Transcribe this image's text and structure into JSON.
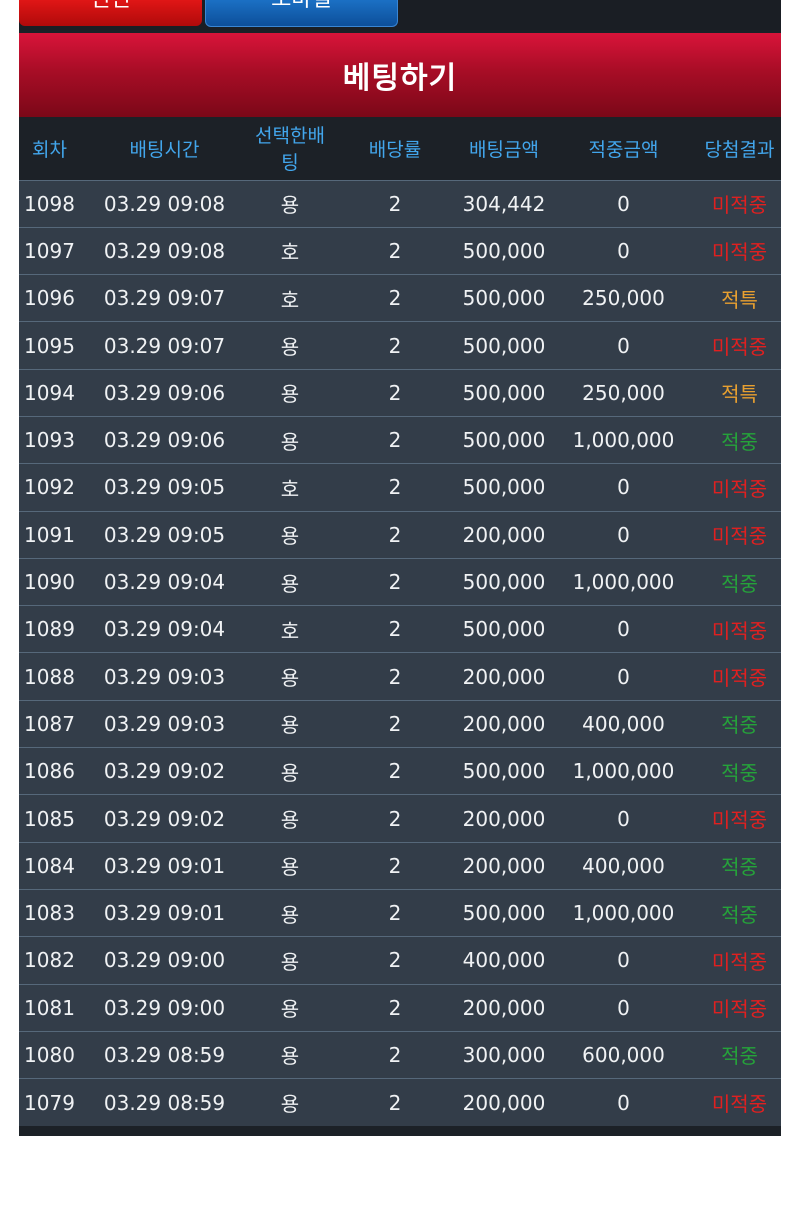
{
  "tabs": {
    "left_label": "친친",
    "right_label": "모바일"
  },
  "header": {
    "title": "베팅하기"
  },
  "table": {
    "columns": [
      "회차",
      "배팅시간",
      "선택한배팅",
      "배당률",
      "배팅금액",
      "적중금액",
      "당첨결과"
    ],
    "rows": [
      {
        "round": "1098",
        "time": "03.29 09:08",
        "pick": "용",
        "odds": "2",
        "bet": "304,442",
        "win_amount": "0",
        "result": "미적중",
        "result_type": "loss"
      },
      {
        "round": "1097",
        "time": "03.29 09:08",
        "pick": "호",
        "odds": "2",
        "bet": "500,000",
        "win_amount": "0",
        "result": "미적중",
        "result_type": "loss"
      },
      {
        "round": "1096",
        "time": "03.29 09:07",
        "pick": "호",
        "odds": "2",
        "bet": "500,000",
        "win_amount": "250,000",
        "result": "적특",
        "result_type": "partial"
      },
      {
        "round": "1095",
        "time": "03.29 09:07",
        "pick": "용",
        "odds": "2",
        "bet": "500,000",
        "win_amount": "0",
        "result": "미적중",
        "result_type": "loss"
      },
      {
        "round": "1094",
        "time": "03.29 09:06",
        "pick": "용",
        "odds": "2",
        "bet": "500,000",
        "win_amount": "250,000",
        "result": "적특",
        "result_type": "partial"
      },
      {
        "round": "1093",
        "time": "03.29 09:06",
        "pick": "용",
        "odds": "2",
        "bet": "500,000",
        "win_amount": "1,000,000",
        "result": "적중",
        "result_type": "win"
      },
      {
        "round": "1092",
        "time": "03.29 09:05",
        "pick": "호",
        "odds": "2",
        "bet": "500,000",
        "win_amount": "0",
        "result": "미적중",
        "result_type": "loss"
      },
      {
        "round": "1091",
        "time": "03.29 09:05",
        "pick": "용",
        "odds": "2",
        "bet": "200,000",
        "win_amount": "0",
        "result": "미적중",
        "result_type": "loss"
      },
      {
        "round": "1090",
        "time": "03.29 09:04",
        "pick": "용",
        "odds": "2",
        "bet": "500,000",
        "win_amount": "1,000,000",
        "result": "적중",
        "result_type": "win"
      },
      {
        "round": "1089",
        "time": "03.29 09:04",
        "pick": "호",
        "odds": "2",
        "bet": "500,000",
        "win_amount": "0",
        "result": "미적중",
        "result_type": "loss"
      },
      {
        "round": "1088",
        "time": "03.29 09:03",
        "pick": "용",
        "odds": "2",
        "bet": "200,000",
        "win_amount": "0",
        "result": "미적중",
        "result_type": "loss"
      },
      {
        "round": "1087",
        "time": "03.29 09:03",
        "pick": "용",
        "odds": "2",
        "bet": "200,000",
        "win_amount": "400,000",
        "result": "적중",
        "result_type": "win"
      },
      {
        "round": "1086",
        "time": "03.29 09:02",
        "pick": "용",
        "odds": "2",
        "bet": "500,000",
        "win_amount": "1,000,000",
        "result": "적중",
        "result_type": "win"
      },
      {
        "round": "1085",
        "time": "03.29 09:02",
        "pick": "용",
        "odds": "2",
        "bet": "200,000",
        "win_amount": "0",
        "result": "미적중",
        "result_type": "loss"
      },
      {
        "round": "1084",
        "time": "03.29 09:01",
        "pick": "용",
        "odds": "2",
        "bet": "200,000",
        "win_amount": "400,000",
        "result": "적중",
        "result_type": "win"
      },
      {
        "round": "1083",
        "time": "03.29 09:01",
        "pick": "용",
        "odds": "2",
        "bet": "500,000",
        "win_amount": "1,000,000",
        "result": "적중",
        "result_type": "win"
      },
      {
        "round": "1082",
        "time": "03.29 09:00",
        "pick": "용",
        "odds": "2",
        "bet": "400,000",
        "win_amount": "0",
        "result": "미적중",
        "result_type": "loss"
      },
      {
        "round": "1081",
        "time": "03.29 09:00",
        "pick": "용",
        "odds": "2",
        "bet": "200,000",
        "win_amount": "0",
        "result": "미적중",
        "result_type": "loss"
      },
      {
        "round": "1080",
        "time": "03.29 08:59",
        "pick": "용",
        "odds": "2",
        "bet": "300,000",
        "win_amount": "600,000",
        "result": "적중",
        "result_type": "win"
      },
      {
        "round": "1079",
        "time": "03.29 08:59",
        "pick": "용",
        "odds": "2",
        "bet": "200,000",
        "win_amount": "0",
        "result": "미적중",
        "result_type": "loss"
      }
    ]
  },
  "colors": {
    "header_red": "#a80d26",
    "column_header_blue": "#42a6ec",
    "row_bg": "#333d49",
    "result_loss": "#e02020",
    "result_partial": "#e8a030",
    "result_win": "#25a33a"
  }
}
